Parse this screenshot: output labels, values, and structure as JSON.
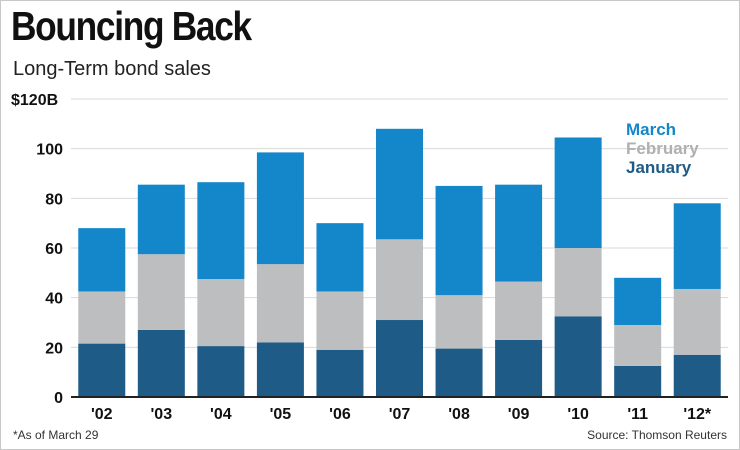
{
  "title": "Bouncing Back",
  "subtitle": "Long-Term bond sales",
  "footnote": "*As of March 29",
  "source": "Source: Thomson Reuters",
  "colors": {
    "january": "#1e5b86",
    "february": "#bdbec0",
    "march": "#1387c9",
    "grid": "#d9d9d9",
    "axis": "#222222"
  },
  "chart_data": {
    "type": "bar",
    "stacked": true,
    "categories": [
      "'02",
      "'03",
      "'04",
      "'05",
      "'06",
      "'07",
      "'08",
      "'09",
      "'10",
      "'11",
      "'12*"
    ],
    "series": [
      {
        "name": "January",
        "values": [
          21.5,
          27,
          20.5,
          22,
          19,
          31,
          19.5,
          23,
          32.5,
          12.5,
          17
        ]
      },
      {
        "name": "February",
        "values": [
          21,
          30.5,
          27,
          31.5,
          23.5,
          32.5,
          21.5,
          23.5,
          27.5,
          16.5,
          26.5
        ]
      },
      {
        "name": "March",
        "values": [
          25.5,
          28,
          39,
          45,
          27.5,
          44.5,
          44,
          39,
          44.5,
          19,
          34.5
        ]
      }
    ],
    "ylim": [
      0,
      120
    ],
    "yticks": [
      0,
      20,
      40,
      60,
      80,
      100,
      120
    ],
    "ytick_labels": [
      "0",
      "20",
      "40",
      "60",
      "80",
      "100",
      "$120B"
    ],
    "legend_order": [
      "March",
      "February",
      "January"
    ],
    "legend_position": "top-right",
    "grid": true
  }
}
